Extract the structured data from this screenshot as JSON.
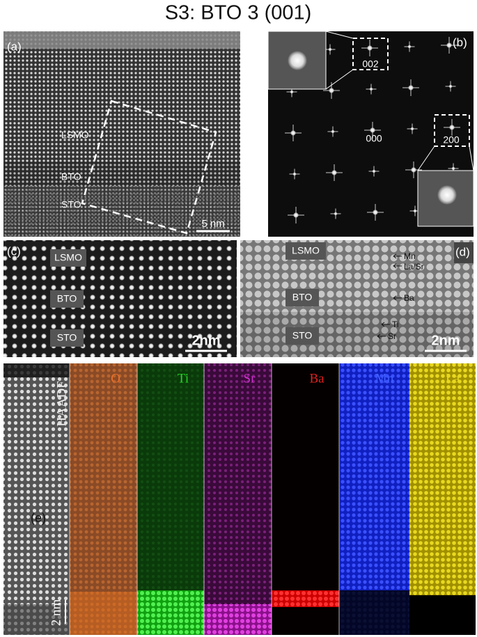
{
  "title": "S3: BTO 3 (001)",
  "panel_a": {
    "label": "(a)",
    "layers": [
      "LSMO",
      "BTO",
      "STO"
    ],
    "scale_bar": "5 nm"
  },
  "panel_b": {
    "label": "(b)",
    "spots": [
      "002",
      "000",
      "200"
    ]
  },
  "panel_c": {
    "label": "(c)",
    "layers": [
      "LSMO",
      "BTO",
      "STO"
    ],
    "scale_bar": "2nm"
  },
  "panel_d": {
    "label": "(d)",
    "layers": [
      "LSMO",
      "BTO",
      "STO"
    ],
    "atoms": [
      "Mn",
      "La/Sr",
      "Ba",
      "Ti",
      "Sr"
    ],
    "scale_bar": "2nm"
  },
  "panel_e": {
    "label": "(e)",
    "maps": [
      "HAADF",
      "O",
      "Ti",
      "Sr",
      "Ba",
      "Mn",
      "La"
    ],
    "scale_bar": "2 nm"
  }
}
